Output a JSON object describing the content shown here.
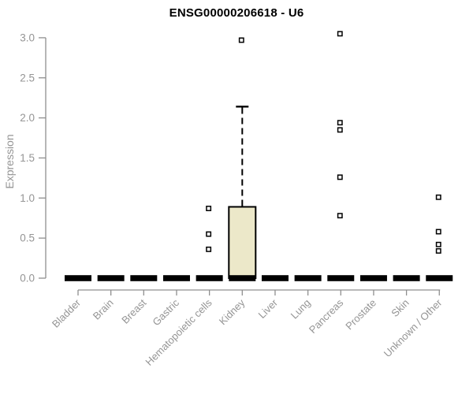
{
  "chart_data": {
    "type": "boxplot",
    "title": "ENSG00000206618 - U6",
    "ylabel": "Expression",
    "xlabel": "",
    "ylim": [
      0,
      3
    ],
    "yticks": [
      0,
      0.5,
      1,
      1.5,
      2,
      2.5,
      3
    ],
    "ytick_labels": [
      "0.0",
      "0.5",
      "1.0",
      "1.5",
      "2.0",
      "2.5",
      "3.0"
    ],
    "grid": false,
    "legend": "none",
    "categories": [
      "Bladder",
      "Brain",
      "Breast",
      "Gastric",
      "Hematopoietic cells",
      "Kidney",
      "Liver",
      "Lung",
      "Pancreas",
      "Prostate",
      "Skin",
      "Unknown / Other"
    ],
    "series": [
      {
        "category": "Bladder",
        "q1": 0,
        "median": 0,
        "q3": 0,
        "whisker_low": 0,
        "whisker_high": 0,
        "outliers": []
      },
      {
        "category": "Brain",
        "q1": 0,
        "median": 0,
        "q3": 0,
        "whisker_low": 0,
        "whisker_high": 0,
        "outliers": []
      },
      {
        "category": "Breast",
        "q1": 0,
        "median": 0,
        "q3": 0,
        "whisker_low": 0,
        "whisker_high": 0,
        "outliers": []
      },
      {
        "category": "Gastric",
        "q1": 0,
        "median": 0,
        "q3": 0,
        "whisker_low": 0,
        "whisker_high": 0,
        "outliers": []
      },
      {
        "category": "Hematopoietic cells",
        "q1": 0,
        "median": 0,
        "q3": 0,
        "whisker_low": 0,
        "whisker_high": 0,
        "outliers": [
          0.36,
          0.55,
          0.87
        ]
      },
      {
        "category": "Kidney",
        "q1": 0,
        "median": 0,
        "q3": 0.89,
        "whisker_low": 0,
        "whisker_high": 2.14,
        "outliers": [
          2.97
        ]
      },
      {
        "category": "Liver",
        "q1": 0,
        "median": 0,
        "q3": 0,
        "whisker_low": 0,
        "whisker_high": 0,
        "outliers": []
      },
      {
        "category": "Lung",
        "q1": 0,
        "median": 0,
        "q3": 0,
        "whisker_low": 0,
        "whisker_high": 0,
        "outliers": []
      },
      {
        "category": "Pancreas",
        "q1": 0,
        "median": 0,
        "q3": 0,
        "whisker_low": 0,
        "whisker_high": 0,
        "outliers": [
          0.78,
          1.26,
          1.85,
          1.94,
          3.05
        ]
      },
      {
        "category": "Prostate",
        "q1": 0,
        "median": 0,
        "q3": 0,
        "whisker_low": 0,
        "whisker_high": 0,
        "outliers": []
      },
      {
        "category": "Skin",
        "q1": 0,
        "median": 0,
        "q3": 0,
        "whisker_low": 0,
        "whisker_high": 0,
        "outliers": []
      },
      {
        "category": "Unknown / Other",
        "q1": 0,
        "median": 0,
        "q3": 0,
        "whisker_low": 0,
        "whisker_high": 0,
        "outliers": [
          0.34,
          0.42,
          0.58,
          1.01
        ]
      }
    ],
    "colors": {
      "box_fill": "#ece8c9",
      "box_stroke": "#000000",
      "median": "#000000",
      "whisker": "#000000",
      "outlier_stroke": "#000000",
      "outlier_fill": "#ffffff",
      "axis": "#8f8f8f",
      "text": "#959595",
      "title": "#000000",
      "background": "#ffffff"
    }
  }
}
